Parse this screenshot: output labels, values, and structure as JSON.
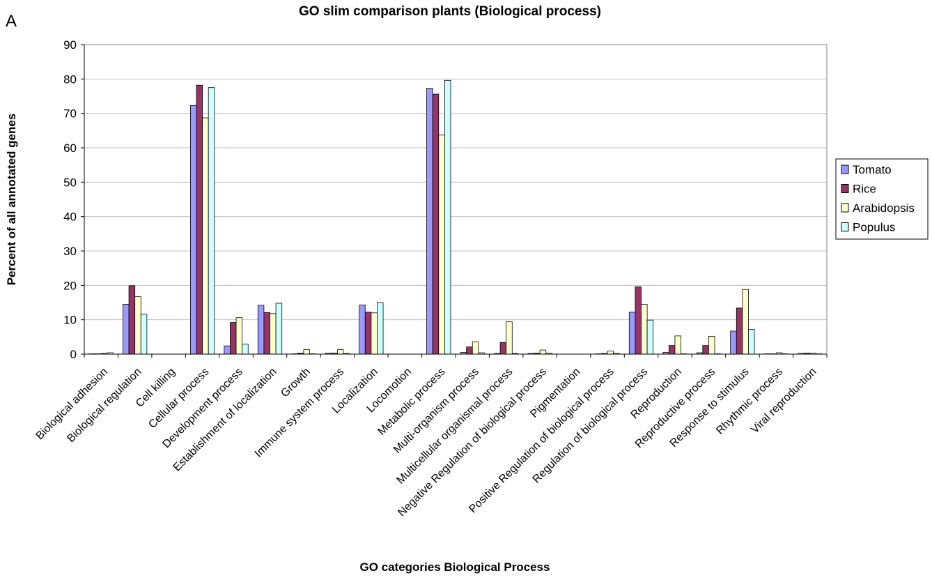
{
  "panel_label": "A",
  "colors": {
    "Tomato": "#9999ff",
    "Rice": "#993366",
    "Arabidopsis": "#ffffcc",
    "Populus": "#ccffff",
    "bar_stroke": "#000000",
    "gridline": "#c0c0c0",
    "axis": "#808080"
  },
  "chart_data": {
    "type": "bar",
    "title": "GO slim comparison plants (Biological process)",
    "xlabel": "GO categories Biological Process",
    "ylabel": "Percent of all annotated genes",
    "ylim": [
      0,
      90
    ],
    "yticks": [
      0,
      10,
      20,
      30,
      40,
      50,
      60,
      70,
      80,
      90
    ],
    "grid": true,
    "legend_position": "right",
    "categories": [
      "Biological adhesion",
      "Biological regulation",
      "Cell killing",
      "Cellular process",
      "Development process",
      "Establishment of localization",
      "Growth",
      "Immune system process",
      "Localization",
      "Locomotion",
      "Metabolic process",
      "Multi-organism process",
      "Multicellular organismal process",
      "Negative Regulation of biological process",
      "Pigmentation",
      "Positive Regulation of biological process",
      "Regulation of biological process",
      "Reproduction",
      "Reproductive process",
      "Response to stimulus",
      "Rhythmic process",
      "Viral reproduction"
    ],
    "series": [
      {
        "name": "Tomato",
        "values": [
          0.1,
          14.5,
          0,
          72.3,
          2.4,
          14.2,
          0.1,
          0.3,
          14.3,
          0,
          77.3,
          0.5,
          0.2,
          0.2,
          0,
          0.1,
          12.2,
          0.5,
          0.4,
          6.7,
          0.1,
          0.2
        ]
      },
      {
        "name": "Rice",
        "values": [
          0.1,
          19.9,
          0,
          78.2,
          9.2,
          12.1,
          0.3,
          0.3,
          12.2,
          0,
          75.6,
          2.1,
          3.4,
          0.3,
          0,
          0.2,
          19.6,
          2.5,
          2.5,
          13.4,
          0.1,
          0.3
        ]
      },
      {
        "name": "Arabidopsis",
        "values": [
          0.2,
          16.7,
          0,
          68.7,
          10.6,
          11.8,
          1.3,
          1.3,
          12.0,
          0,
          63.7,
          3.6,
          9.4,
          1.2,
          0,
          0.9,
          14.5,
          5.3,
          5.2,
          18.8,
          0.4,
          0.3
        ]
      },
      {
        "name": "Populus",
        "values": [
          0.4,
          11.6,
          0,
          77.5,
          2.9,
          14.8,
          0.1,
          0.2,
          15.0,
          0,
          79.6,
          0.4,
          0.2,
          0.3,
          0,
          0.2,
          9.9,
          0.1,
          0.1,
          7.2,
          0.1,
          0.1
        ]
      }
    ]
  }
}
